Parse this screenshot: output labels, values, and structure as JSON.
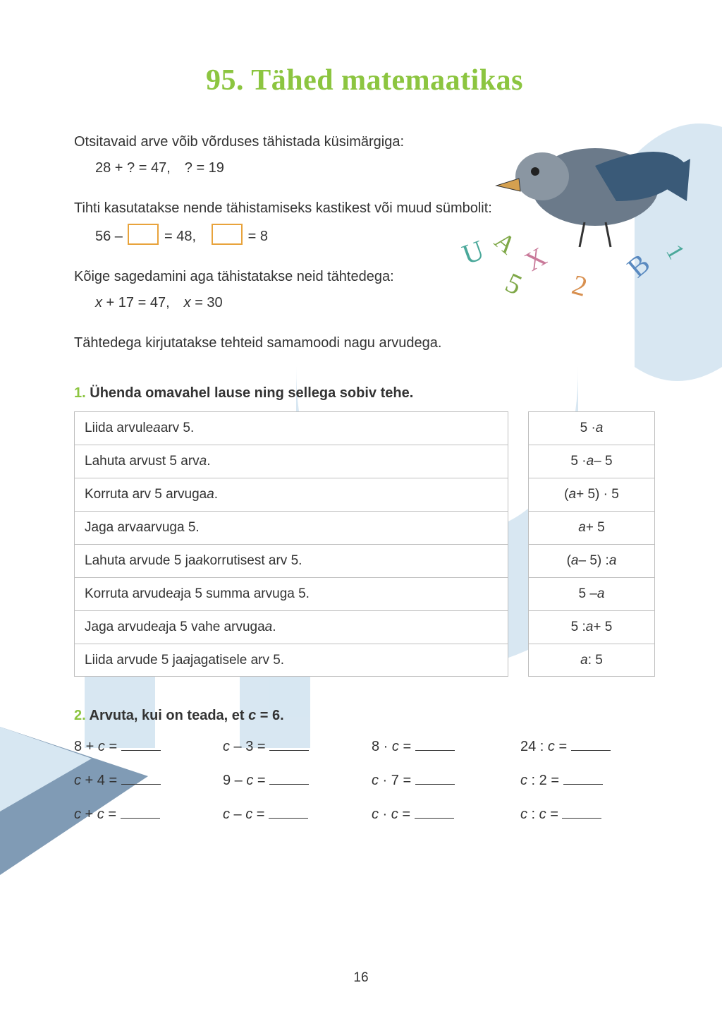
{
  "colors": {
    "title": "#8cc540",
    "ex_num": "#8cc540",
    "text": "#333333",
    "faded": "#9aa0a6",
    "box_border": "#e8a33c",
    "cell_border": "#bfbfbf",
    "watermark_blue": "#b8d4e8",
    "watermark_dark": "#1a4b7a",
    "bird_body": "#6b7a8a",
    "bird_wing": "#3a5a78",
    "bird_beak": "#d4a050",
    "letter_green": "#7fa848",
    "letter_teal": "#4aa89a",
    "letter_pink": "#c97a9a",
    "letter_blue": "#5a8ac0",
    "letter_orange": "#d89050"
  },
  "title": "95. Tähed matemaatikas",
  "intro1_lead": "Otsitavaid arve võib võrduses tähistada küsimärgiga:",
  "intro1_ex": "28 + ? = 47, ? = 19",
  "intro2_lead": "Tihti kasutatakse nende tähistamiseks kastikest või muud sümbolit:",
  "intro2_ex_a": "56 – ",
  "intro2_ex_b": " = 48, ",
  "intro2_ex_c": " = 8",
  "intro3_lead": "Kõige sagedamini aga tähistatakse neid tähtedega:",
  "intro3_ex_a": "x",
  "intro3_ex_b": " + 17 = 47, ",
  "intro3_ex_c": "x",
  "intro3_ex_d": " = 30",
  "intro4": "Tähtedega kirjutatakse tehteid samamoodi nagu arvudega.",
  "ex1_num": "1.",
  "ex1_title": " Ühenda omavahel lause ning sellega sobiv tehe.",
  "match_left": [
    {
      "pre": "Liida arvule ",
      "it": "a",
      "post": " arv 5."
    },
    {
      "pre": "Lahuta arvust 5 arv ",
      "it": "a",
      "post": "."
    },
    {
      "pre": "Korruta arv 5 arvuga ",
      "it": "a",
      "post": "."
    },
    {
      "pre": "Jaga arv ",
      "it": "a",
      "post": " arvuga 5."
    },
    {
      "pre": "Lahuta arvude 5 ja ",
      "it": "a",
      "post": " korrutisest arv 5."
    },
    {
      "pre": "Korruta arvude ",
      "it": "a",
      "post": " ja 5 summa arvuga 5."
    },
    {
      "pre": "Jaga arvude ",
      "it": "a",
      "post": " ja 5 vahe arvuga ",
      "it2": "a",
      "post2": "."
    },
    {
      "pre": "Liida arvude 5 ja ",
      "it": "a",
      "post": " jagatisele arv 5."
    }
  ],
  "match_right": [
    "5 · <i>a</i>",
    "5 · <i>a</i> – 5",
    "(<i>a</i> + 5) · 5",
    "<i>a</i> + 5",
    "(<i>a</i> – 5) : <i>a</i>",
    "5 – <i>a</i>",
    "5 : <i>a</i> + 5",
    "<i>a</i> : 5"
  ],
  "ex2_num": "2.",
  "ex2_title_a": " Arvuta, kui on teada, et ",
  "ex2_title_b": "c",
  "ex2_title_c": " = 6.",
  "calc": [
    "8 + <i>c</i> = ",
    "<i>c</i> – 3 = ",
    "8 · <i>c</i> = ",
    "24 : <i>c</i> = ",
    "<i>c</i> + 4 = ",
    "9 – <i>c</i> = ",
    "<i>c</i> · 7 = ",
    "<i>c</i> : 2 = ",
    "<i>c</i> + <i>c</i> = ",
    "<i>c</i> – <i>c</i> = ",
    "<i>c</i> · <i>c</i> = ",
    "<i>c</i> : <i>c</i> = "
  ],
  "page_number": "16"
}
